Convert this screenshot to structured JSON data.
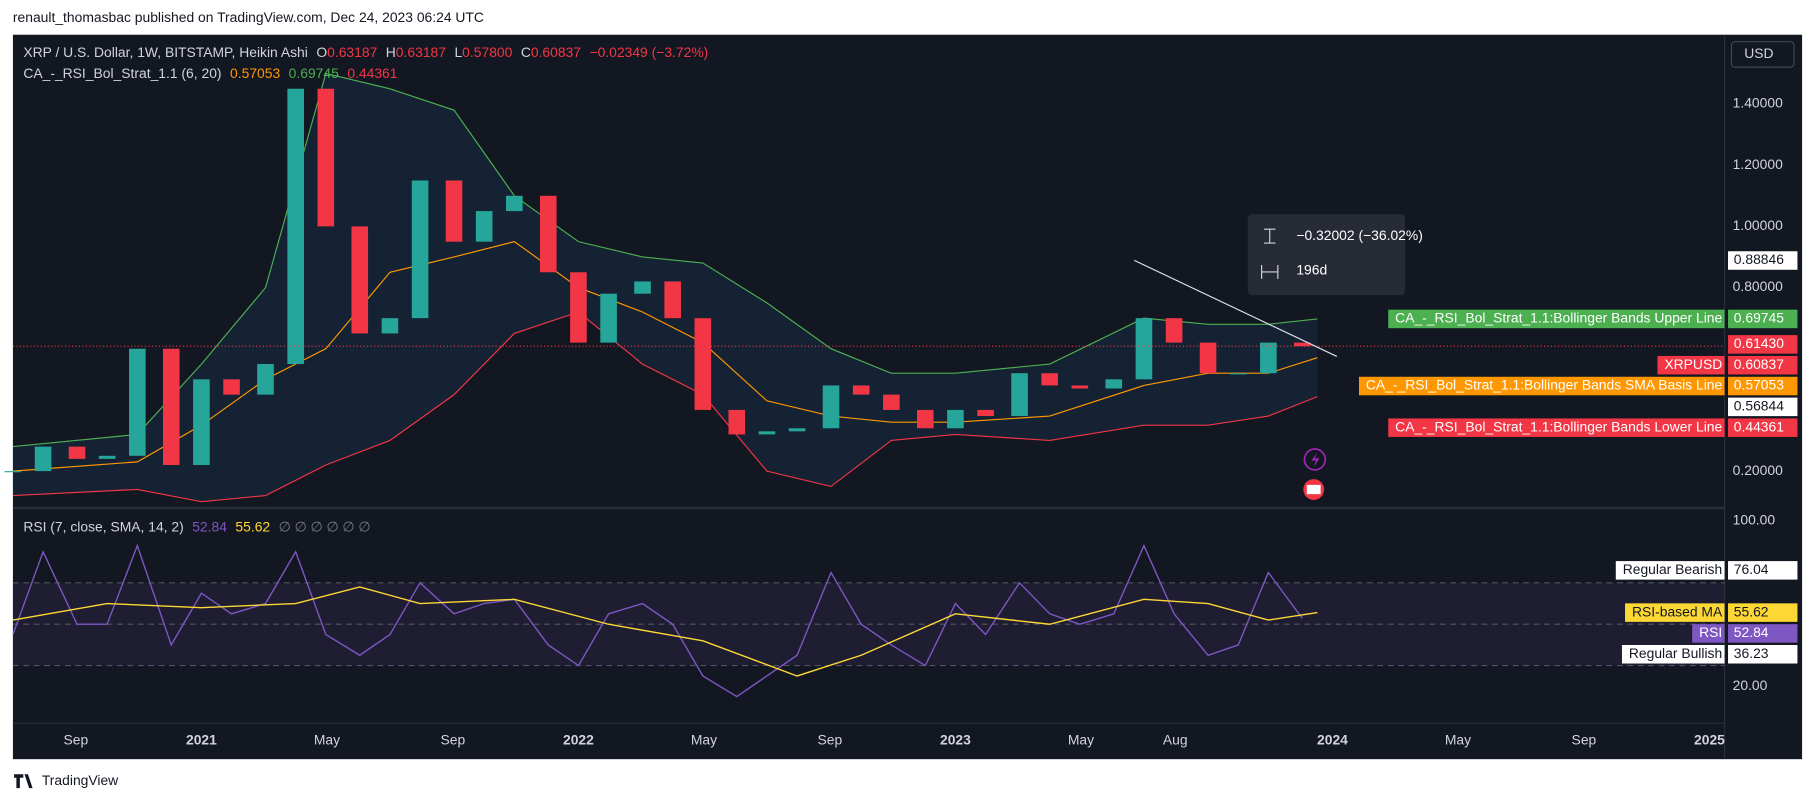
{
  "header": {
    "publisher": "renault_thomasbac published on TradingView.com, Dec 24, 2023 06:24 UTC"
  },
  "legend": {
    "symbol": "XRP / U.S. Dollar, 1W, BITSTAMP, Heikin Ashi",
    "o_label": "O",
    "o": "0.63187",
    "h_label": "H",
    "h": "0.63187",
    "l_label": "L",
    "l": "0.57800",
    "c_label": "C",
    "c": "0.60837",
    "change": "−0.02349 (−3.72%)",
    "indicator": "CA_-_RSI_Bol_Strat_1.1 (6, 20)",
    "indicator_values": [
      "0.57053",
      "0.69745",
      "0.44361"
    ],
    "rsi": "RSI (7, close, SMA, 14, 2)",
    "rsi_values": [
      "52.84",
      "55.62"
    ],
    "rsi_empty": "∅ ∅ ∅ ∅ ∅ ∅"
  },
  "currency": "USD",
  "measure": {
    "change": "−0.32002 (−36.02%)",
    "duration": "196d"
  },
  "footer": "TradingView",
  "chart_data": [
    {
      "type": "candlestick",
      "x": [
        2020.5,
        2020.58,
        2020.67,
        2020.75,
        2020.83,
        2020.92,
        2021.0,
        2021.08,
        2021.17,
        2021.25,
        2021.33,
        2021.42,
        2021.5,
        2021.58,
        2021.67,
        2021.75,
        2021.83,
        2021.92,
        2022.0,
        2022.08,
        2022.17,
        2022.25,
        2022.33,
        2022.42,
        2022.5,
        2022.58,
        2022.67,
        2022.75,
        2022.83,
        2022.92,
        2023.0,
        2023.08,
        2023.17,
        2023.25,
        2023.33,
        2023.42,
        2023.5,
        2023.58,
        2023.67,
        2023.75,
        2023.83,
        2023.92
      ],
      "series": [
        {
          "name": "XRPUSD",
          "up_color": "#26a69a",
          "color": "#f23645",
          "values": [
            0.2,
            0.28,
            0.24,
            0.25,
            0.6,
            0.22,
            0.5,
            0.45,
            0.55,
            1.45,
            1.0,
            0.65,
            0.7,
            1.15,
            0.95,
            1.05,
            1.1,
            0.85,
            0.62,
            0.78,
            0.82,
            0.7,
            0.4,
            0.32,
            0.33,
            0.34,
            0.48,
            0.45,
            0.4,
            0.34,
            0.4,
            0.38,
            0.52,
            0.48,
            0.47,
            0.5,
            0.7,
            0.62,
            0.52,
            0.52,
            0.62,
            0.60837
          ]
        }
      ],
      "band_x": [
        2020.5,
        2020.83,
        2021.0,
        2021.17,
        2021.33,
        2021.5,
        2021.67,
        2021.83,
        2022.0,
        2022.17,
        2022.33,
        2022.5,
        2022.67,
        2022.83,
        2023.0,
        2023.25,
        2023.5,
        2023.67,
        2023.83,
        2023.96
      ],
      "bands": [
        {
          "name": "CA_-_RSI_Bol_Strat_1.1:Bollinger Bands Upper Line",
          "color": "#4caf50",
          "values": [
            0.28,
            0.32,
            0.55,
            0.8,
            1.5,
            1.45,
            1.38,
            1.1,
            0.95,
            0.9,
            0.88,
            0.75,
            0.6,
            0.52,
            0.52,
            0.55,
            0.7,
            0.68,
            0.68,
            0.69745
          ]
        },
        {
          "name": "CA_-_RSI_Bol_Strat_1.1:Bollinger Bands SMA Basis Line",
          "color": "#ff9800",
          "values": [
            0.2,
            0.23,
            0.35,
            0.5,
            0.6,
            0.85,
            0.9,
            0.95,
            0.8,
            0.72,
            0.62,
            0.43,
            0.38,
            0.36,
            0.36,
            0.38,
            0.48,
            0.52,
            0.52,
            0.57053
          ]
        },
        {
          "name": "CA_-_RSI_Bol_Strat_1.1:Bollinger Bands Lower Line",
          "color": "#f23645",
          "values": [
            0.12,
            0.14,
            0.1,
            0.12,
            0.22,
            0.3,
            0.45,
            0.65,
            0.72,
            0.55,
            0.45,
            0.2,
            0.15,
            0.3,
            0.32,
            0.3,
            0.35,
            0.35,
            0.38,
            0.44361
          ]
        }
      ],
      "price_labels": [
        {
          "value": 0.88846,
          "color": "#ffffff"
        },
        {
          "value": 0.6143,
          "label": "0.61430",
          "color": "#f23645"
        },
        {
          "value": 0.56844,
          "color": "#ffffff"
        }
      ],
      "xlim": [
        2020.5,
        2025.04
      ],
      "ylim": [
        0.083,
        1.619
      ],
      "yticks": [
        {
          "value": 1.4,
          "label": "1.40000"
        },
        {
          "value": 1.2,
          "label": "1.20000"
        },
        {
          "value": 1.0,
          "label": "1.00000"
        },
        {
          "value": 0.8,
          "label": "0.80000"
        },
        {
          "value": 0.2,
          "label": "0.20000"
        }
      ]
    },
    {
      "type": "line",
      "x": [
        2020.5,
        2020.58,
        2020.67,
        2020.75,
        2020.83,
        2020.92,
        2021.0,
        2021.08,
        2021.17,
        2021.25,
        2021.33,
        2021.42,
        2021.5,
        2021.58,
        2021.67,
        2021.75,
        2021.83,
        2021.92,
        2022.0,
        2022.08,
        2022.17,
        2022.25,
        2022.33,
        2022.42,
        2022.5,
        2022.58,
        2022.67,
        2022.75,
        2022.83,
        2022.92,
        2023.0,
        2023.08,
        2023.17,
        2023.25,
        2023.33,
        2023.42,
        2023.5,
        2023.58,
        2023.67,
        2023.75,
        2023.83,
        2023.92
      ],
      "series": [
        {
          "name": "RSI",
          "color": "#7e57c2",
          "values": [
            45,
            85,
            50,
            50,
            88,
            40,
            65,
            55,
            60,
            85,
            45,
            35,
            45,
            70,
            55,
            60,
            62,
            40,
            30,
            55,
            60,
            50,
            25,
            15,
            25,
            35,
            75,
            50,
            40,
            30,
            60,
            45,
            70,
            55,
            50,
            55,
            88,
            55,
            35,
            40,
            75,
            52.84
          ]
        },
        {
          "name": "RSI-based MA",
          "color": "#fdd835",
          "x": [
            2020.5,
            2020.75,
            2021.0,
            2021.25,
            2021.42,
            2021.58,
            2021.83,
            2022.08,
            2022.33,
            2022.58,
            2022.75,
            2023.0,
            2023.25,
            2023.5,
            2023.67,
            2023.83,
            2023.96
          ],
          "values": [
            52,
            60,
            58,
            60,
            68,
            60,
            62,
            50,
            42,
            25,
            35,
            55,
            50,
            62,
            60,
            52,
            55.62
          ]
        }
      ],
      "levels": [
        {
          "name": "Regular Bearish",
          "value": 76.04
        },
        {
          "name": "Regular Bullish",
          "value": 36.23
        }
      ],
      "hlines": [
        70,
        50,
        30
      ],
      "xlim": [
        2020.5,
        2025.04
      ],
      "ylim": [
        2.1,
        105.6
      ],
      "yticks": [
        {
          "value": 100,
          "label": "100.00"
        },
        {
          "value": 20,
          "label": "20.00"
        }
      ],
      "xticks": [
        {
          "value": 2020.667,
          "label": "Sep"
        },
        {
          "value": 2021,
          "label": "2021"
        },
        {
          "value": 2021.333,
          "label": "May"
        },
        {
          "value": 2021.667,
          "label": "Sep"
        },
        {
          "value": 2022,
          "label": "2022"
        },
        {
          "value": 2022.333,
          "label": "May"
        },
        {
          "value": 2022.667,
          "label": "Sep"
        },
        {
          "value": 2023,
          "label": "2023"
        },
        {
          "value": 2023.333,
          "label": "May"
        },
        {
          "value": 2023.583,
          "label": "Aug"
        },
        {
          "value": 2024,
          "label": "2024"
        },
        {
          "value": 2024.333,
          "label": "May"
        },
        {
          "value": 2024.667,
          "label": "Sep"
        },
        {
          "value": 2025,
          "label": "2025"
        }
      ]
    }
  ]
}
